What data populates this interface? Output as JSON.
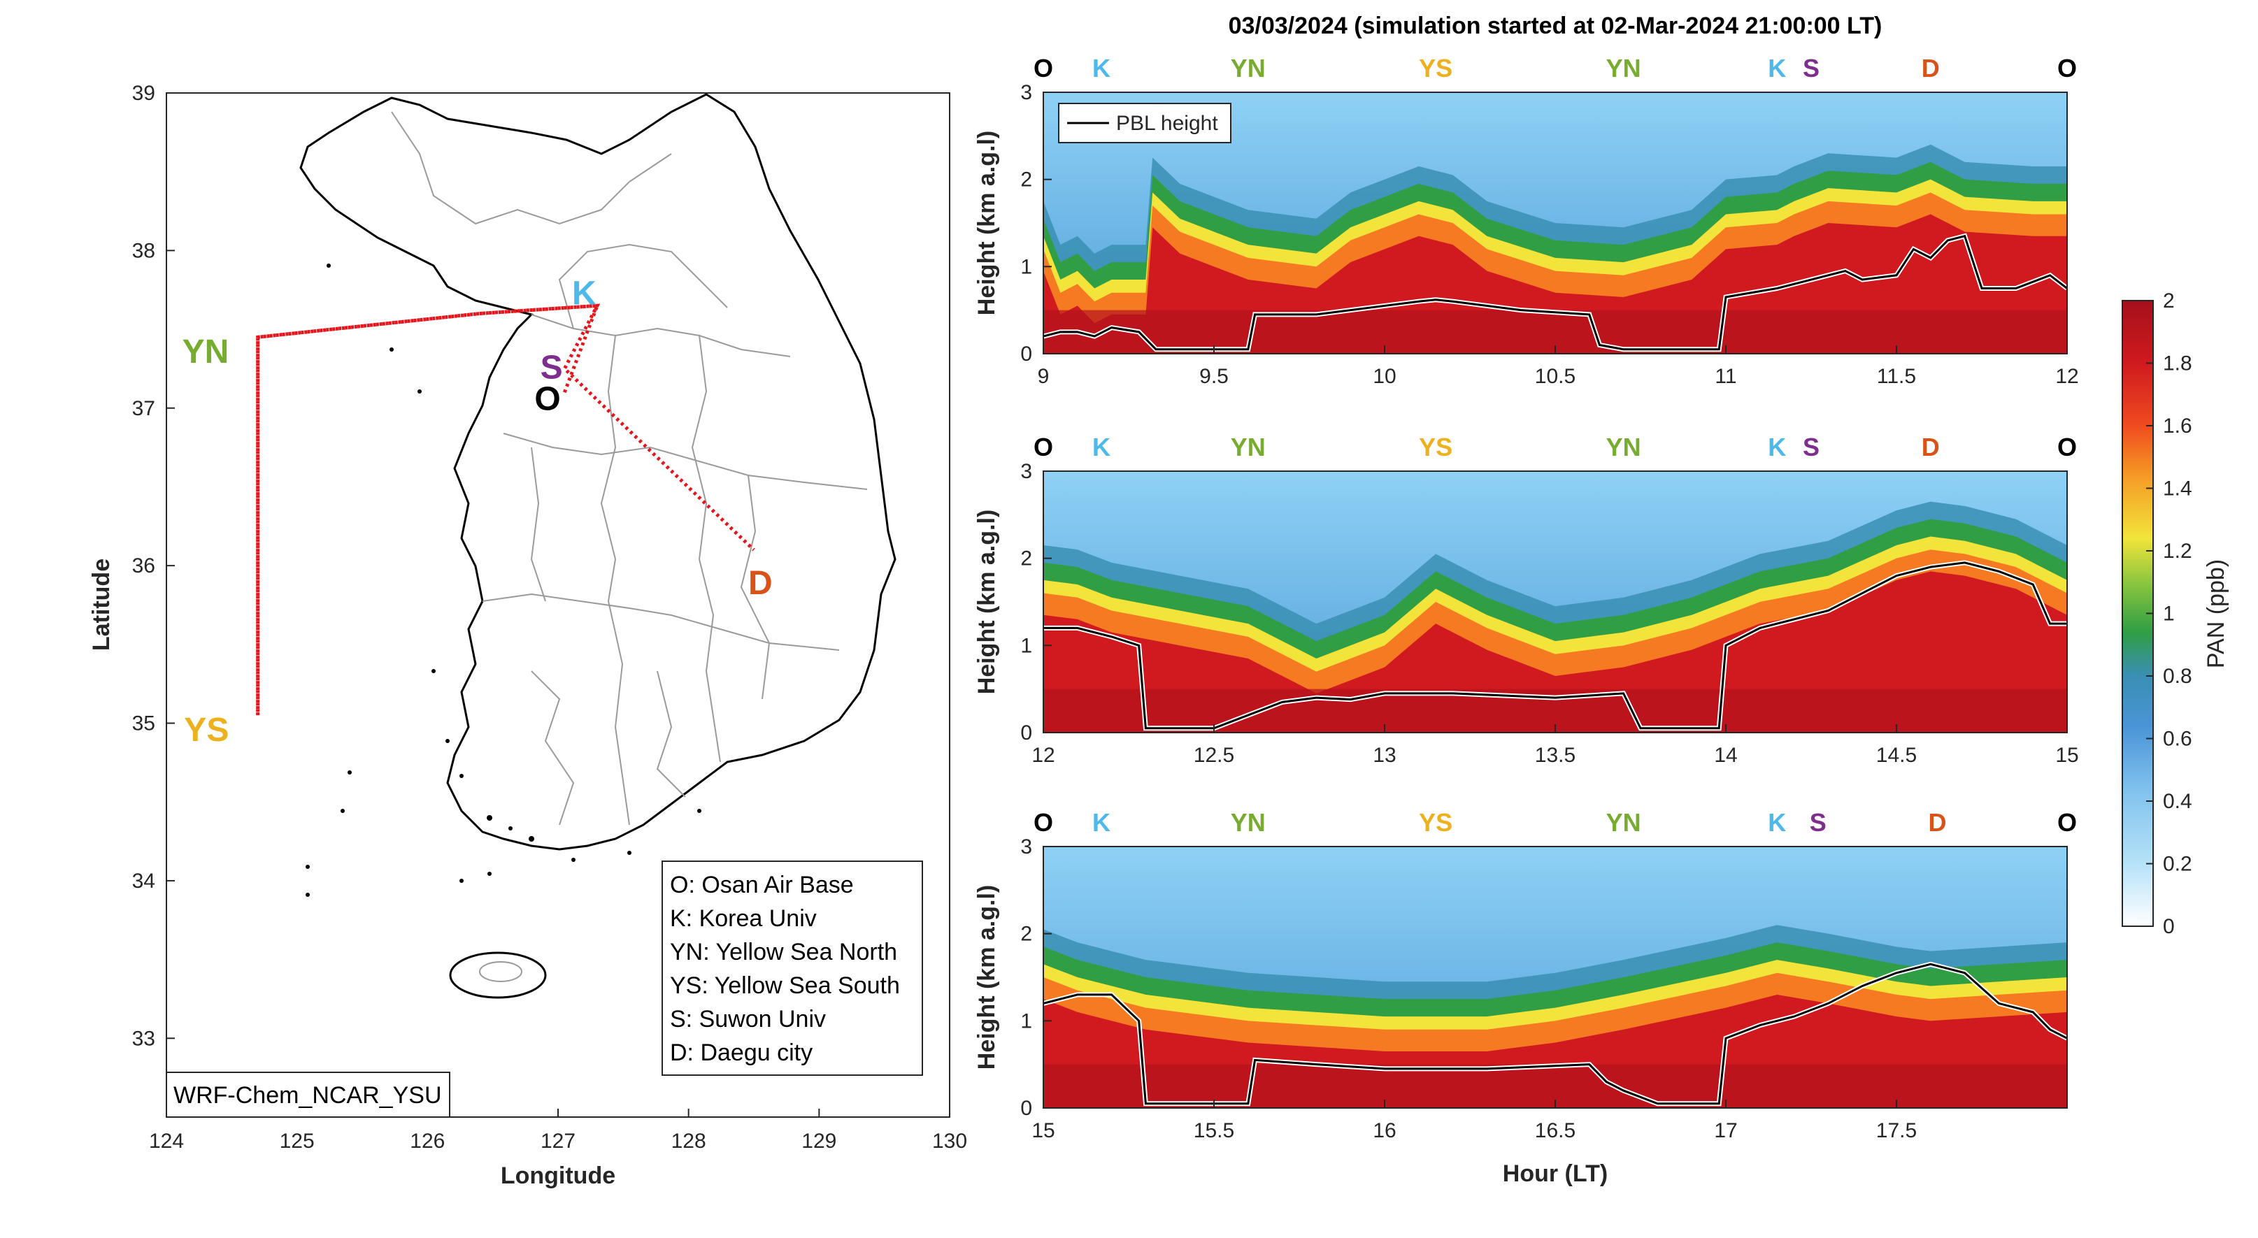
{
  "title": "03/03/2024 (simulation started at 02-Mar-2024 21:00:00 LT)",
  "colors": {
    "O": "#000000",
    "K": "#4db8ea",
    "YN": "#77ac30",
    "YS": "#edb120",
    "S": "#7e2f8e",
    "D": "#d95319",
    "track": "#e8141b"
  },
  "map": {
    "xlabel": "Longitude",
    "ylabel": "Latitude",
    "xlim": [
      124,
      130
    ],
    "ylim": [
      32.5,
      39
    ],
    "xticks": [
      "124",
      "125",
      "126",
      "127",
      "128",
      "129",
      "130"
    ],
    "yticks": [
      "33",
      "34",
      "35",
      "36",
      "37",
      "38",
      "39"
    ],
    "model_label": "WRF-Chem_NCAR_YSU",
    "legend": [
      "O: Osan Air Base",
      "K: Korea Univ",
      "YN: Yellow Sea North",
      "YS: Yellow Sea South",
      "S: Suwon Univ",
      "D: Daegu city"
    ],
    "sites": [
      {
        "code": "K",
        "lon": 127.2,
        "lat": 37.72
      },
      {
        "code": "S",
        "lon": 126.95,
        "lat": 37.25
      },
      {
        "code": "O",
        "lon": 126.92,
        "lat": 37.05
      },
      {
        "code": "YN",
        "lon": 124.5,
        "lat": 37.42
      },
      {
        "code": "YS",
        "lon": 124.5,
        "lat": 35.02
      },
      {
        "code": "D",
        "lon": 128.55,
        "lat": 35.88
      }
    ],
    "track": [
      [
        127.05,
        37.1
      ],
      [
        127.3,
        37.65
      ],
      [
        126.4,
        37.6
      ],
      [
        124.7,
        37.45
      ],
      [
        124.7,
        35.05
      ],
      [
        124.7,
        37.45
      ],
      [
        126.4,
        37.6
      ],
      [
        127.3,
        37.65
      ],
      [
        127.05,
        37.25
      ],
      [
        128.5,
        36.1
      ]
    ]
  },
  "colorbar": {
    "label": "PAN (ppb)",
    "range": [
      0,
      2
    ],
    "ticks": [
      "0",
      "0.2",
      "0.4",
      "0.6",
      "0.8",
      "1",
      "1.2",
      "1.4",
      "1.6",
      "1.8",
      "2"
    ]
  },
  "legend_label": "PBL height",
  "panel_xlabel": "Hour (LT)",
  "panel_ylabel": "Height (km a.g.l)",
  "yticks": [
    "0",
    "1",
    "2",
    "3"
  ],
  "chart_data": [
    {
      "type": "heatmap",
      "xlim": [
        9,
        12
      ],
      "ylim": [
        0,
        3
      ],
      "xticks": [
        "9",
        "9.5",
        "10",
        "10.5",
        "11",
        "11.5",
        "12"
      ],
      "site_labels": [
        [
          "O",
          9
        ],
        [
          "K",
          9.17
        ],
        [
          "YN",
          9.6
        ],
        [
          "YS",
          10.15
        ],
        [
          "YN",
          10.7
        ],
        [
          "K",
          11.15
        ],
        [
          "S",
          11.25
        ],
        [
          "D",
          11.6
        ],
        [
          "O",
          12
        ]
      ],
      "pbl": [
        [
          9,
          0.2
        ],
        [
          9.05,
          0.25
        ],
        [
          9.1,
          0.25
        ],
        [
          9.15,
          0.2
        ],
        [
          9.2,
          0.3
        ],
        [
          9.28,
          0.25
        ],
        [
          9.33,
          0.05
        ],
        [
          9.5,
          0.05
        ],
        [
          9.6,
          0.05
        ],
        [
          9.62,
          0.45
        ],
        [
          9.8,
          0.45
        ],
        [
          10.0,
          0.55
        ],
        [
          10.1,
          0.6
        ],
        [
          10.15,
          0.62
        ],
        [
          10.2,
          0.6
        ],
        [
          10.4,
          0.5
        ],
        [
          10.6,
          0.45
        ],
        [
          10.63,
          0.1
        ],
        [
          10.7,
          0.05
        ],
        [
          10.98,
          0.05
        ],
        [
          11.0,
          0.65
        ],
        [
          11.15,
          0.75
        ],
        [
          11.2,
          0.8
        ],
        [
          11.3,
          0.9
        ],
        [
          11.35,
          0.95
        ],
        [
          11.4,
          0.85
        ],
        [
          11.5,
          0.9
        ],
        [
          11.55,
          1.2
        ],
        [
          11.6,
          1.1
        ],
        [
          11.65,
          1.3
        ],
        [
          11.7,
          1.35
        ],
        [
          11.75,
          0.75
        ],
        [
          11.85,
          0.75
        ],
        [
          11.95,
          0.9
        ],
        [
          12,
          0.75
        ]
      ],
      "layer_top": [
        [
          9,
          1.2
        ],
        [
          9.05,
          0.7
        ],
        [
          9.1,
          0.8
        ],
        [
          9.15,
          0.6
        ],
        [
          9.2,
          0.7
        ],
        [
          9.3,
          0.7
        ],
        [
          9.32,
          1.7
        ],
        [
          9.4,
          1.4
        ],
        [
          9.6,
          1.1
        ],
        [
          9.8,
          1.0
        ],
        [
          9.9,
          1.3
        ],
        [
          10.1,
          1.6
        ],
        [
          10.2,
          1.5
        ],
        [
          10.3,
          1.2
        ],
        [
          10.5,
          0.95
        ],
        [
          10.7,
          0.9
        ],
        [
          10.9,
          1.1
        ],
        [
          11.0,
          1.45
        ],
        [
          11.15,
          1.5
        ],
        [
          11.2,
          1.6
        ],
        [
          11.3,
          1.75
        ],
        [
          11.5,
          1.7
        ],
        [
          11.6,
          1.85
        ],
        [
          11.7,
          1.65
        ],
        [
          11.9,
          1.6
        ],
        [
          12,
          1.6
        ]
      ]
    },
    {
      "type": "heatmap",
      "xlim": [
        12,
        15
      ],
      "ylim": [
        0,
        3
      ],
      "xticks": [
        "12",
        "12.5",
        "13",
        "13.5",
        "14",
        "14.5",
        "15"
      ],
      "site_labels": [
        [
          "O",
          12
        ],
        [
          "K",
          12.17
        ],
        [
          "YN",
          12.6
        ],
        [
          "YS",
          13.15
        ],
        [
          "YN",
          13.7
        ],
        [
          "K",
          14.15
        ],
        [
          "S",
          14.25
        ],
        [
          "D",
          14.6
        ],
        [
          "O",
          15
        ]
      ],
      "pbl": [
        [
          12,
          1.2
        ],
        [
          12.1,
          1.2
        ],
        [
          12.2,
          1.1
        ],
        [
          12.28,
          1.0
        ],
        [
          12.3,
          0.05
        ],
        [
          12.5,
          0.05
        ],
        [
          12.6,
          0.2
        ],
        [
          12.7,
          0.35
        ],
        [
          12.8,
          0.4
        ],
        [
          12.9,
          0.38
        ],
        [
          13.0,
          0.45
        ],
        [
          13.2,
          0.45
        ],
        [
          13.5,
          0.4
        ],
        [
          13.7,
          0.45
        ],
        [
          13.75,
          0.05
        ],
        [
          13.98,
          0.05
        ],
        [
          14.0,
          1.0
        ],
        [
          14.1,
          1.2
        ],
        [
          14.2,
          1.3
        ],
        [
          14.3,
          1.4
        ],
        [
          14.4,
          1.6
        ],
        [
          14.5,
          1.8
        ],
        [
          14.6,
          1.9
        ],
        [
          14.7,
          1.95
        ],
        [
          14.8,
          1.85
        ],
        [
          14.9,
          1.7
        ],
        [
          14.95,
          1.25
        ],
        [
          15,
          1.25
        ]
      ],
      "layer_top": [
        [
          12,
          1.6
        ],
        [
          12.1,
          1.55
        ],
        [
          12.2,
          1.4
        ],
        [
          12.4,
          1.25
        ],
        [
          12.6,
          1.1
        ],
        [
          12.8,
          0.7
        ],
        [
          13.0,
          1.0
        ],
        [
          13.15,
          1.5
        ],
        [
          13.3,
          1.2
        ],
        [
          13.5,
          0.9
        ],
        [
          13.7,
          1.0
        ],
        [
          13.9,
          1.2
        ],
        [
          14.1,
          1.5
        ],
        [
          14.3,
          1.65
        ],
        [
          14.5,
          2.0
        ],
        [
          14.6,
          2.1
        ],
        [
          14.7,
          2.05
        ],
        [
          14.85,
          1.9
        ],
        [
          15,
          1.6
        ]
      ]
    },
    {
      "type": "heatmap",
      "xlim": [
        15,
        18
      ],
      "ylim": [
        0,
        3
      ],
      "xticks": [
        "15",
        "15.5",
        "16",
        "16.5",
        "17",
        "17.5"
      ],
      "site_labels": [
        [
          "O",
          15
        ],
        [
          "K",
          15.17
        ],
        [
          "YN",
          15.6
        ],
        [
          "YS",
          16.15
        ],
        [
          "YN",
          16.7
        ],
        [
          "K",
          17.15
        ],
        [
          "S",
          17.27
        ],
        [
          "D",
          17.62
        ],
        [
          "O",
          18
        ]
      ],
      "pbl": [
        [
          15,
          1.2
        ],
        [
          15.1,
          1.3
        ],
        [
          15.2,
          1.3
        ],
        [
          15.28,
          1.0
        ],
        [
          15.3,
          0.05
        ],
        [
          15.6,
          0.05
        ],
        [
          15.62,
          0.55
        ],
        [
          15.8,
          0.5
        ],
        [
          16.0,
          0.45
        ],
        [
          16.3,
          0.45
        ],
        [
          16.6,
          0.5
        ],
        [
          16.65,
          0.3
        ],
        [
          16.7,
          0.2
        ],
        [
          16.8,
          0.05
        ],
        [
          16.98,
          0.05
        ],
        [
          17.0,
          0.8
        ],
        [
          17.1,
          0.95
        ],
        [
          17.2,
          1.05
        ],
        [
          17.3,
          1.2
        ],
        [
          17.4,
          1.4
        ],
        [
          17.5,
          1.55
        ],
        [
          17.6,
          1.65
        ],
        [
          17.7,
          1.55
        ],
        [
          17.8,
          1.2
        ],
        [
          17.9,
          1.1
        ],
        [
          17.95,
          0.9
        ],
        [
          18,
          0.8
        ]
      ],
      "layer_top": [
        [
          15,
          1.5
        ],
        [
          15.1,
          1.35
        ],
        [
          15.3,
          1.15
        ],
        [
          15.6,
          1.0
        ],
        [
          15.8,
          0.95
        ],
        [
          16.0,
          0.9
        ],
        [
          16.3,
          0.9
        ],
        [
          16.5,
          1.0
        ],
        [
          16.7,
          1.15
        ],
        [
          17.0,
          1.4
        ],
        [
          17.15,
          1.55
        ],
        [
          17.3,
          1.45
        ],
        [
          17.5,
          1.3
        ],
        [
          17.6,
          1.25
        ],
        [
          17.8,
          1.3
        ],
        [
          18,
          1.35
        ]
      ]
    }
  ]
}
